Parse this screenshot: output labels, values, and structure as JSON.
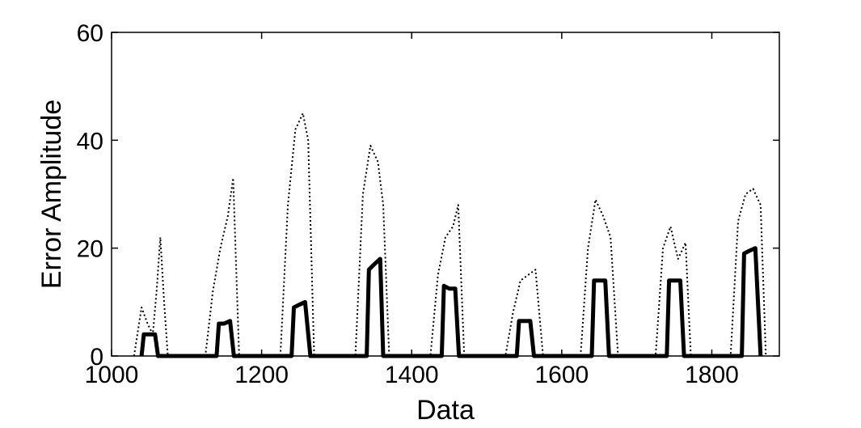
{
  "chart_data": {
    "type": "line",
    "title": "",
    "xlabel": "Data",
    "ylabel": "Error Amplitude",
    "xlim": [
      1000,
      1890
    ],
    "ylim": [
      0,
      60
    ],
    "xticks": [
      1000,
      1200,
      1400,
      1600,
      1800
    ],
    "yticks": [
      0,
      20,
      40,
      60
    ],
    "grid": false,
    "legend": "none",
    "colors": {
      "axes": "#000000",
      "series": "#000000",
      "background": "#ffffff"
    },
    "series": [
      {
        "style": "dotted",
        "x": [
          1030,
          1040,
          1048,
          1055,
          1060,
          1065,
          1070,
          1075,
          1125,
          1135,
          1145,
          1155,
          1162,
          1170,
          1225,
          1235,
          1245,
          1255,
          1262,
          1270,
          1325,
          1335,
          1345,
          1355,
          1362,
          1370,
          1425,
          1435,
          1445,
          1455,
          1462,
          1470,
          1525,
          1535,
          1545,
          1555,
          1565,
          1575,
          1625,
          1635,
          1645,
          1655,
          1665,
          1675,
          1725,
          1735,
          1745,
          1755,
          1765,
          1772,
          1825,
          1835,
          1845,
          1855,
          1865,
          1872
        ],
        "y": [
          0,
          9,
          6,
          4,
          12,
          22,
          10,
          0,
          0,
          12,
          20,
          26,
          33,
          0,
          0,
          28,
          42,
          45,
          40,
          0,
          0,
          30,
          39,
          36,
          28,
          0,
          0,
          15,
          22,
          24,
          28,
          0,
          0,
          8,
          14,
          15,
          16,
          0,
          0,
          20,
          29,
          26,
          22,
          0,
          0,
          20,
          24,
          18,
          21,
          0,
          0,
          25,
          30,
          31,
          28,
          0
        ]
      },
      {
        "style": "solid",
        "x": [
          1040,
          1043,
          1050,
          1058,
          1062,
          1140,
          1143,
          1150,
          1158,
          1163,
          1240,
          1243,
          1250,
          1258,
          1265,
          1340,
          1343,
          1350,
          1358,
          1362,
          1440,
          1443,
          1450,
          1458,
          1463,
          1540,
          1543,
          1550,
          1558,
          1563,
          1640,
          1643,
          1650,
          1658,
          1663,
          1740,
          1743,
          1750,
          1758,
          1763,
          1840,
          1843,
          1850,
          1858,
          1865
        ],
        "y": [
          0,
          4,
          4,
          4,
          0,
          0,
          6,
          6,
          6.5,
          0,
          0,
          9,
          9.5,
          10,
          0,
          0,
          16,
          17,
          18,
          0,
          0,
          13,
          12.5,
          12.5,
          0,
          0,
          6.5,
          6.5,
          6.5,
          0,
          0,
          14,
          14,
          14,
          0,
          0,
          14,
          14,
          14,
          0,
          0,
          19,
          19.5,
          20,
          0
        ]
      }
    ]
  }
}
